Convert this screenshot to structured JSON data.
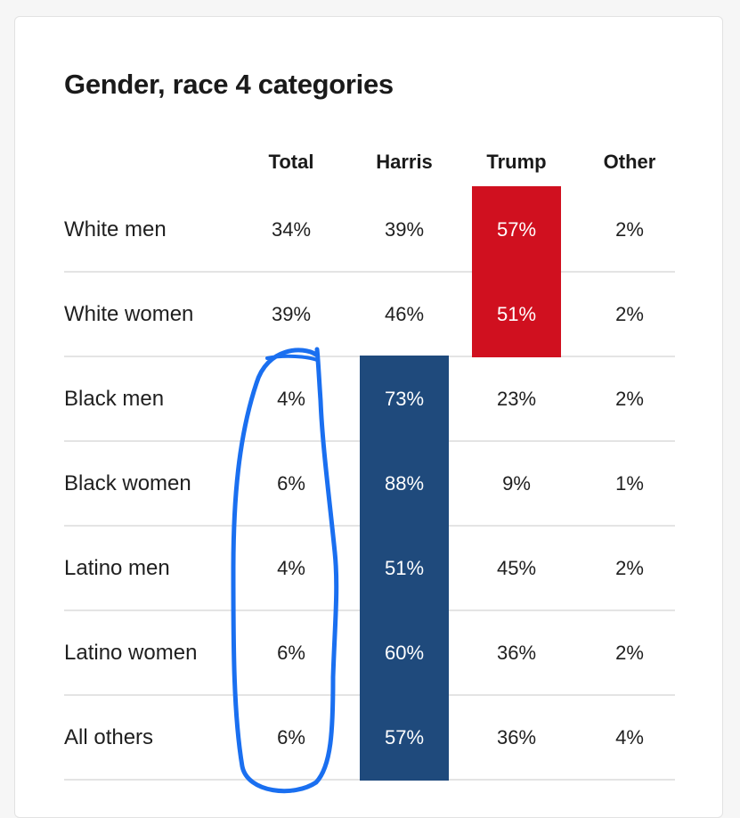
{
  "table": {
    "title": "Gender, race 4 categories",
    "columns": [
      "Total",
      "Harris",
      "Trump",
      "Other"
    ],
    "rows": [
      {
        "label": "White men",
        "total": "34%",
        "harris": "39%",
        "trump": "57%",
        "other": "2%",
        "winner": "trump"
      },
      {
        "label": "White women",
        "total": "39%",
        "harris": "46%",
        "trump": "51%",
        "other": "2%",
        "winner": "trump"
      },
      {
        "label": "Black men",
        "total": "4%",
        "harris": "73%",
        "trump": "23%",
        "other": "2%",
        "winner": "harris"
      },
      {
        "label": "Black women",
        "total": "6%",
        "harris": "88%",
        "trump": "9%",
        "other": "1%",
        "winner": "harris"
      },
      {
        "label": "Latino men",
        "total": "4%",
        "harris": "51%",
        "trump": "45%",
        "other": "2%",
        "winner": "harris"
      },
      {
        "label": "Latino women",
        "total": "6%",
        "harris": "60%",
        "trump": "36%",
        "other": "2%",
        "winner": "harris"
      },
      {
        "label": "All others",
        "total": "6%",
        "harris": "57%",
        "trump": "36%",
        "other": "4%",
        "winner": "harris"
      }
    ]
  },
  "colors": {
    "harris": "#1f4a7c",
    "trump": "#d0101f",
    "annotation": "#1a6ff0"
  },
  "annotation": {
    "type": "hand-drawn-circle",
    "target_column": "Total",
    "target_rows": [
      "Black men",
      "Black women",
      "Latino men",
      "Latino women",
      "All others"
    ]
  }
}
